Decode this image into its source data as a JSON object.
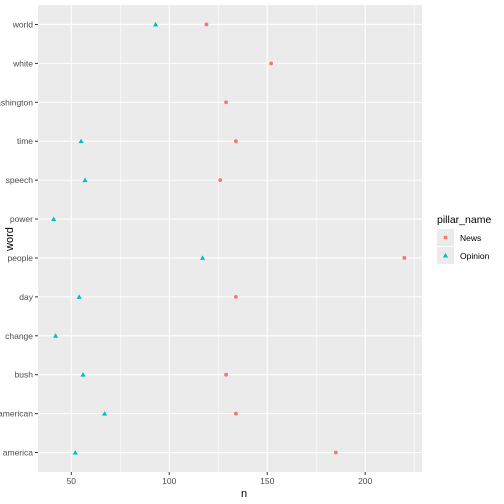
{
  "chart_data": {
    "type": "scatter",
    "xlabel": "n",
    "ylabel": "word",
    "xlim": [
      33,
      229
    ],
    "x_ticks": [
      50,
      100,
      150,
      200
    ],
    "categories": [
      "america",
      "american",
      "bush",
      "change",
      "day",
      "people",
      "power",
      "speech",
      "time",
      "washington",
      "white",
      "world"
    ],
    "legend_title": "pillar_name",
    "legend_position": "right",
    "grid": true,
    "series": [
      {
        "name": "News",
        "shape": "circle",
        "color": "#F8766D",
        "points": [
          {
            "word": "america",
            "n": 185
          },
          {
            "word": "american",
            "n": 134
          },
          {
            "word": "bush",
            "n": 129
          },
          {
            "word": "day",
            "n": 134
          },
          {
            "word": "people",
            "n": 220
          },
          {
            "word": "speech",
            "n": 126
          },
          {
            "word": "time",
            "n": 134
          },
          {
            "word": "washington",
            "n": 129
          },
          {
            "word": "white",
            "n": 152
          },
          {
            "word": "world",
            "n": 119
          }
        ]
      },
      {
        "name": "Opinion",
        "shape": "triangle",
        "color": "#00BFC4",
        "points": [
          {
            "word": "america",
            "n": 52
          },
          {
            "word": "american",
            "n": 67
          },
          {
            "word": "bush",
            "n": 56
          },
          {
            "word": "change",
            "n": 42
          },
          {
            "word": "day",
            "n": 54
          },
          {
            "word": "people",
            "n": 117
          },
          {
            "word": "power",
            "n": 41
          },
          {
            "word": "speech",
            "n": 57
          },
          {
            "word": "time",
            "n": 55
          },
          {
            "word": "world",
            "n": 93
          }
        ]
      }
    ]
  }
}
